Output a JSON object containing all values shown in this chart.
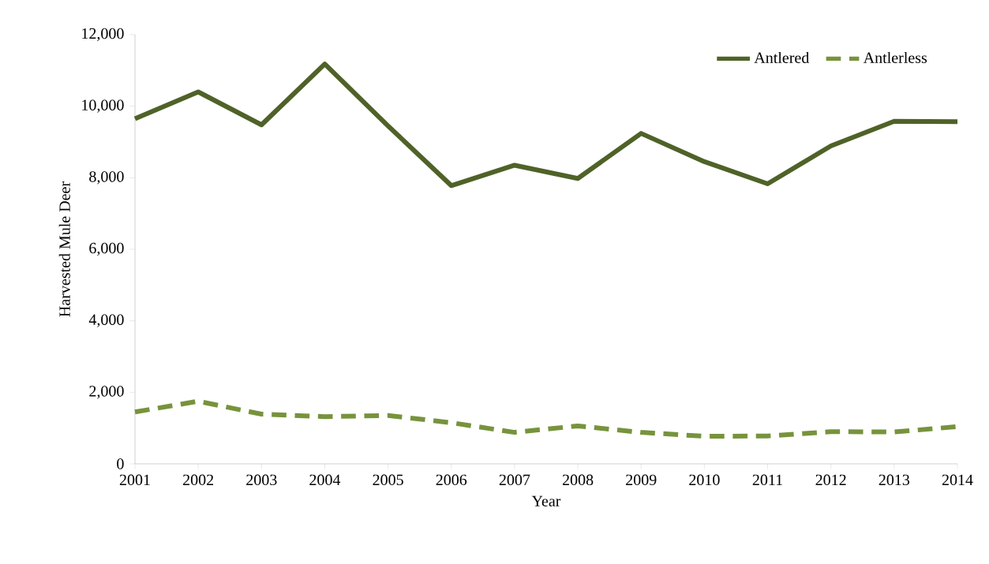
{
  "chart_data": {
    "type": "line",
    "xlabel": "Year",
    "ylabel": "Harvested Mule Deer",
    "x": [
      2001,
      2002,
      2003,
      2004,
      2005,
      2006,
      2007,
      2008,
      2009,
      2010,
      2011,
      2012,
      2013,
      2014
    ],
    "series": [
      {
        "name": "Antlered",
        "color": "#4f6228",
        "line_style": "solid",
        "values": [
          9650,
          10400,
          9480,
          11180,
          9450,
          7780,
          8350,
          7980,
          9240,
          8450,
          7830,
          8890,
          9580,
          9570
        ]
      },
      {
        "name": "Antlerless",
        "color": "#77933c",
        "line_style": "dashed",
        "values": [
          1450,
          1750,
          1390,
          1320,
          1350,
          1150,
          880,
          1060,
          880,
          770,
          780,
          900,
          890,
          1040
        ]
      }
    ],
    "xlim": [
      2001,
      2014
    ],
    "xticks": [
      2001,
      2002,
      2003,
      2004,
      2005,
      2006,
      2007,
      2008,
      2009,
      2010,
      2011,
      2012,
      2013,
      2014
    ],
    "ylim": [
      0,
      12000
    ],
    "yticks": [
      0,
      {
        "value": 2000,
        "label": "2,000"
      },
      {
        "value": 4000,
        "label": "4,000"
      },
      {
        "value": 6000,
        "label": "6,000"
      },
      {
        "value": 8000,
        "label": "8,000"
      },
      {
        "value": 10000,
        "label": "10,000"
      },
      {
        "value": 12000,
        "label": "12,000"
      }
    ],
    "legend": "top right",
    "grid": false
  }
}
